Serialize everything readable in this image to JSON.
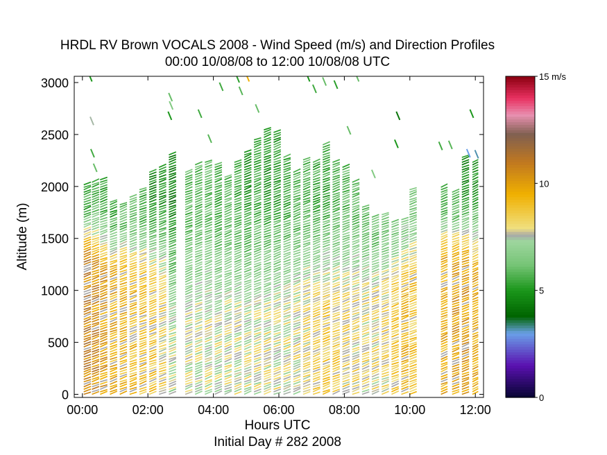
{
  "chart_data": {
    "type": "heatmap",
    "title": "HRDL RV Brown VOCALS 2008 - Wind Speed (m/s) and Direction Profiles",
    "subtitle": "00:00 10/08/08 to 12:00 10/08/08  UTC",
    "xlabel": "Hours UTC",
    "xlabel2": "Initial Day # 282  2008",
    "ylabel": "Altitude (m)",
    "xlim": [
      -0.25,
      12.25
    ],
    "ylim": [
      -30,
      3060
    ],
    "xticks": [
      0,
      2,
      4,
      6,
      8,
      10,
      12
    ],
    "xtick_labels": [
      "00:00",
      "02:00",
      "04:00",
      "06:00",
      "08:00",
      "10:00",
      "12:00"
    ],
    "yticks": [
      0,
      500,
      1000,
      1500,
      2000,
      2500,
      3000
    ],
    "ytick_labels": [
      "0",
      "500",
      "1000",
      "1500",
      "2000",
      "2500",
      "3000"
    ],
    "colorbar": {
      "min": 0,
      "max": 15,
      "ticks": [
        0,
        5,
        10,
        15
      ],
      "tick_labels": [
        "0",
        "5",
        "10",
        "15 m/s"
      ],
      "stops": [
        {
          "v": 0,
          "c": "#050530"
        },
        {
          "v": 1.5,
          "c": "#5a10b0"
        },
        {
          "v": 3.0,
          "c": "#6aa0e8"
        },
        {
          "v": 3.8,
          "c": "#006400"
        },
        {
          "v": 5.0,
          "c": "#1a961a"
        },
        {
          "v": 6.2,
          "c": "#76c476"
        },
        {
          "v": 7.3,
          "c": "#9ed69e"
        },
        {
          "v": 7.6,
          "c": "#a8a8a8"
        },
        {
          "v": 7.9,
          "c": "#f0e080"
        },
        {
          "v": 9.5,
          "c": "#f0b000"
        },
        {
          "v": 11.0,
          "c": "#c07820"
        },
        {
          "v": 12.3,
          "c": "#806050"
        },
        {
          "v": 13.2,
          "c": "#e890b0"
        },
        {
          "v": 14.0,
          "c": "#e83060"
        },
        {
          "v": 15,
          "c": "#8a0010"
        }
      ]
    },
    "profiles": [
      {
        "t": 0.15,
        "w": 0.22,
        "top": 2030,
        "low": 1300,
        "mid": 10.8,
        "up": 5.5
      },
      {
        "t": 0.4,
        "w": 0.22,
        "top": 2060,
        "low": 1250,
        "mid": 10.5,
        "up": 5.8
      },
      {
        "t": 0.65,
        "w": 0.22,
        "top": 2080,
        "low": 1200,
        "mid": 10.0,
        "up": 5.5
      },
      {
        "t": 0.95,
        "w": 0.22,
        "top": 1850,
        "low": 1200,
        "mid": 9.5,
        "up": 5.5
      },
      {
        "t": 1.25,
        "w": 0.22,
        "top": 1840,
        "low": 1200,
        "mid": 9.3,
        "up": 6.0
      },
      {
        "t": 1.55,
        "w": 0.22,
        "top": 1900,
        "low": 1150,
        "mid": 9.2,
        "up": 6.0
      },
      {
        "t": 1.85,
        "w": 0.22,
        "top": 1970,
        "low": 1150,
        "mid": 9.0,
        "up": 5.5
      },
      {
        "t": 2.15,
        "w": 0.22,
        "top": 2150,
        "low": 1100,
        "mid": 8.8,
        "up": 4.8
      },
      {
        "t": 2.45,
        "w": 0.22,
        "top": 2200,
        "low": 1050,
        "mid": 8.3,
        "up": 5.0
      },
      {
        "t": 2.75,
        "w": 0.22,
        "top": 2320,
        "low": 800,
        "mid": 7.2,
        "up": 4.5
      },
      {
        "t": 3.25,
        "w": 0.22,
        "top": 2140,
        "low": 750,
        "mid": 7.5,
        "up": 5.8
      },
      {
        "t": 3.55,
        "w": 0.22,
        "top": 2210,
        "low": 720,
        "mid": 7.6,
        "up": 5.8
      },
      {
        "t": 3.85,
        "w": 0.22,
        "top": 2240,
        "low": 700,
        "mid": 7.7,
        "up": 6.0
      },
      {
        "t": 4.15,
        "w": 0.22,
        "top": 2220,
        "low": 680,
        "mid": 7.6,
        "up": 5.5
      },
      {
        "t": 4.45,
        "w": 0.22,
        "top": 2110,
        "low": 680,
        "mid": 7.6,
        "up": 6.0
      },
      {
        "t": 4.75,
        "w": 0.22,
        "top": 2250,
        "low": 700,
        "mid": 7.6,
        "up": 5.5
      },
      {
        "t": 5.05,
        "w": 0.22,
        "top": 2330,
        "low": 700,
        "mid": 7.6,
        "up": 5.2
      },
      {
        "t": 5.35,
        "w": 0.22,
        "top": 2450,
        "low": 720,
        "mid": 7.7,
        "up": 5.5
      },
      {
        "t": 5.65,
        "w": 0.22,
        "top": 2560,
        "low": 730,
        "mid": 7.8,
        "up": 5.0
      },
      {
        "t": 5.95,
        "w": 0.22,
        "top": 2540,
        "low": 740,
        "mid": 7.8,
        "up": 5.2
      },
      {
        "t": 6.25,
        "w": 0.22,
        "top": 2300,
        "low": 760,
        "mid": 7.8,
        "up": 5.5
      },
      {
        "t": 6.55,
        "w": 0.22,
        "top": 2150,
        "low": 780,
        "mid": 7.9,
        "up": 5.8
      },
      {
        "t": 6.85,
        "w": 0.22,
        "top": 2270,
        "low": 800,
        "mid": 8.2,
        "up": 5.8
      },
      {
        "t": 7.15,
        "w": 0.22,
        "top": 2250,
        "low": 820,
        "mid": 8.5,
        "up": 5.5
      },
      {
        "t": 7.45,
        "w": 0.22,
        "top": 2400,
        "low": 850,
        "mid": 8.6,
        "up": 5.3
      },
      {
        "t": 7.75,
        "w": 0.22,
        "top": 2250,
        "low": 880,
        "mid": 8.5,
        "up": 5.6
      },
      {
        "t": 8.05,
        "w": 0.22,
        "top": 2200,
        "low": 900,
        "mid": 8.3,
        "up": 5.8
      },
      {
        "t": 8.35,
        "w": 0.22,
        "top": 2050,
        "low": 920,
        "mid": 8.2,
        "up": 6.0
      },
      {
        "t": 8.65,
        "w": 0.22,
        "top": 1800,
        "low": 950,
        "mid": 8.0,
        "up": 6.1
      },
      {
        "t": 8.95,
        "w": 0.22,
        "top": 1710,
        "low": 980,
        "mid": 8.0,
        "up": 6.0
      },
      {
        "t": 9.25,
        "w": 0.22,
        "top": 1750,
        "low": 1000,
        "mid": 8.2,
        "up": 6.2
      },
      {
        "t": 9.55,
        "w": 0.22,
        "top": 1660,
        "low": 1050,
        "mid": 8.6,
        "up": 6.5
      },
      {
        "t": 9.85,
        "w": 0.22,
        "top": 1680,
        "low": 1100,
        "mid": 9.2,
        "up": 6.8
      },
      {
        "t": 10.1,
        "w": 0.22,
        "top": 1990,
        "low": 1150,
        "mid": 8.8,
        "up": 6.5
      },
      {
        "t": 11.05,
        "w": 0.2,
        "top": 2010,
        "low": 1300,
        "mid": 9.5,
        "up": 5.8
      },
      {
        "t": 11.4,
        "w": 0.22,
        "top": 1960,
        "low": 1300,
        "mid": 9.8,
        "up": 6.0
      },
      {
        "t": 11.7,
        "w": 0.22,
        "top": 2280,
        "low": 1250,
        "mid": 10.0,
        "up": 4.8
      },
      {
        "t": 12.0,
        "w": 0.18,
        "top": 2240,
        "low": 1200,
        "mid": 9.5,
        "up": 5.0
      }
    ],
    "sparse_points": [
      {
        "t": 0.25,
        "alt": 3050,
        "v": 5.0
      },
      {
        "t": 0.3,
        "alt": 2630,
        "v": 7.5
      },
      {
        "t": 0.32,
        "alt": 2320,
        "v": 5.5
      },
      {
        "t": 0.4,
        "alt": 2180,
        "v": 6.0
      },
      {
        "t": 2.7,
        "alt": 2860,
        "v": 6.0
      },
      {
        "t": 2.72,
        "alt": 2780,
        "v": 6.5
      },
      {
        "t": 2.68,
        "alt": 2680,
        "v": 5.0
      },
      {
        "t": 3.6,
        "alt": 2700,
        "v": 5.5
      },
      {
        "t": 3.9,
        "alt": 2460,
        "v": 5.8
      },
      {
        "t": 4.25,
        "alt": 2960,
        "v": 5.5
      },
      {
        "t": 4.75,
        "alt": 3040,
        "v": 5.2
      },
      {
        "t": 4.85,
        "alt": 2920,
        "v": 5.8
      },
      {
        "t": 5.05,
        "alt": 3050,
        "v": 9.5
      },
      {
        "t": 5.35,
        "alt": 2750,
        "v": 6.0
      },
      {
        "t": 6.9,
        "alt": 3050,
        "v": 5.0
      },
      {
        "t": 7.1,
        "alt": 2940,
        "v": 5.5
      },
      {
        "t": 7.4,
        "alt": 3010,
        "v": 6.0
      },
      {
        "t": 7.75,
        "alt": 2980,
        "v": 5.2
      },
      {
        "t": 8.4,
        "alt": 3050,
        "v": 6.0
      },
      {
        "t": 8.15,
        "alt": 2540,
        "v": 6.0
      },
      {
        "t": 8.9,
        "alt": 2120,
        "v": 6.5
      },
      {
        "t": 9.65,
        "alt": 2680,
        "v": 4.2
      },
      {
        "t": 9.6,
        "alt": 2410,
        "v": 5.0
      },
      {
        "t": 10.95,
        "alt": 2390,
        "v": 5.5
      },
      {
        "t": 11.25,
        "alt": 2400,
        "v": 5.8
      },
      {
        "t": 11.9,
        "alt": 2700,
        "v": 5.0
      },
      {
        "t": 11.8,
        "alt": 2320,
        "v": 3.0
      },
      {
        "t": 12.05,
        "alt": 2310,
        "v": 3.2
      }
    ]
  }
}
